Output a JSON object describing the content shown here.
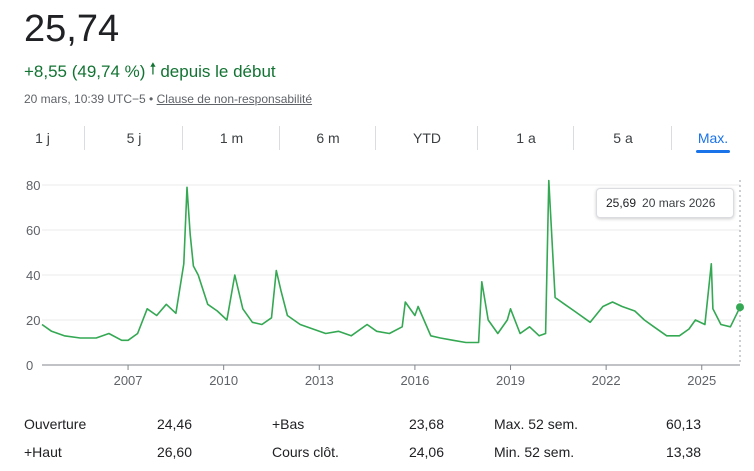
{
  "quote": {
    "price": "25,74",
    "change": "+8,55 (49,74 %)",
    "change_suffix": "depuis le début",
    "timestamp": "20 mars, 10:39 UTC−5 •",
    "disclaimer": "Clause de non-responsabilité",
    "up_color": "#137333"
  },
  "tabs": [
    {
      "label": "1 j"
    },
    {
      "label": "5 j"
    },
    {
      "label": "1 m"
    },
    {
      "label": "6 m"
    },
    {
      "label": "YTD"
    },
    {
      "label": "1 a"
    },
    {
      "label": "5 a"
    },
    {
      "label": "Max.",
      "active": true
    }
  ],
  "tooltip": {
    "value": "25,69",
    "date": "20 mars 2026"
  },
  "chart_data": {
    "type": "line",
    "title": "",
    "xlabel": "",
    "ylabel": "",
    "ylim": [
      0,
      80
    ],
    "yticks": [
      "0",
      "20",
      "40",
      "60",
      "80"
    ],
    "xticks": [
      "2007",
      "2010",
      "2013",
      "2016",
      "2019",
      "2022",
      "2025"
    ],
    "line_color": "#34a853",
    "grid": true,
    "series": [
      {
        "x": [
          2004.3,
          2004.6,
          2005.0,
          2005.5,
          2006.0,
          2006.4,
          2006.8,
          2007.0,
          2007.3,
          2007.6,
          2007.9,
          2008.2,
          2008.5,
          2008.75,
          2008.85,
          2008.95,
          2009.05,
          2009.2,
          2009.5,
          2009.8,
          2010.1,
          2010.35,
          2010.6,
          2010.9,
          2011.2,
          2011.5,
          2011.65,
          2011.8,
          2012.0,
          2012.4,
          2012.8,
          2013.2,
          2013.6,
          2014.0,
          2014.5,
          2014.8,
          2015.2,
          2015.6,
          2015.7,
          2016.0,
          2016.1,
          2016.5,
          2016.8,
          2017.2,
          2017.6,
          2018.0,
          2018.1,
          2018.3,
          2018.6,
          2018.9,
          2019.0,
          2019.3,
          2019.6,
          2019.9,
          2020.1,
          2020.2,
          2020.4,
          2020.7,
          2021.0,
          2021.5,
          2021.9,
          2022.2,
          2022.5,
          2022.9,
          2023.2,
          2023.5,
          2023.9,
          2024.3,
          2024.6,
          2024.8,
          2025.1,
          2025.3,
          2025.35,
          2025.6,
          2025.9,
          2026.2
        ],
        "y": [
          18,
          15,
          13,
          12,
          12,
          14,
          11,
          11,
          14,
          25,
          22,
          27,
          23,
          45,
          79,
          58,
          44,
          40,
          27,
          24,
          20,
          40,
          25,
          19,
          18,
          21,
          42,
          33,
          22,
          18,
          16,
          14,
          15,
          13,
          18,
          15,
          14,
          17,
          28,
          22,
          26,
          13,
          12,
          11,
          10,
          10,
          37,
          20,
          14,
          20,
          25,
          14,
          17,
          13,
          14,
          82,
          30,
          27,
          24,
          19,
          26,
          28,
          26,
          24,
          20,
          17,
          13,
          13,
          16,
          20,
          18,
          45,
          25,
          18,
          17,
          25.69
        ]
      }
    ]
  },
  "stats": [
    [
      {
        "label": "Ouverture",
        "value": "24,46"
      },
      {
        "label": "+Bas",
        "value": "23,68"
      },
      {
        "label": "Max. 52 sem.",
        "value": "60,13"
      }
    ],
    [
      {
        "label": "+Haut",
        "value": "26,60"
      },
      {
        "label": "Cours clôt.",
        "value": "24,06"
      },
      {
        "label": "Min. 52 sem.",
        "value": "13,38"
      }
    ]
  ]
}
